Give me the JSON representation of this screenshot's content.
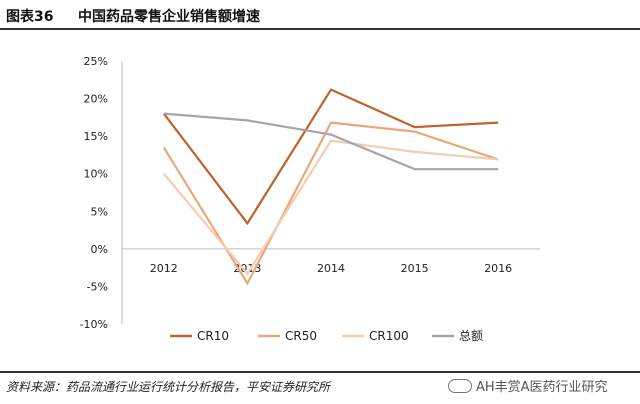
{
  "figure": {
    "number": "图表36",
    "title": "中国药品零售企业销售额增速",
    "source": "资料来源：药品流通行业运行统计分析报告，平安证券研究所",
    "watermark": "AH丰赏A医药行业研究"
  },
  "chart_data": {
    "type": "line",
    "title": "中国药品零售企业销售额增速",
    "xlabel": "",
    "ylabel": "",
    "categories": [
      "2012",
      "2013",
      "2014",
      "2015",
      "2016"
    ],
    "y_tick_labels": [
      "25%",
      "20%",
      "15%",
      "10%",
      "5%",
      "0%",
      "-5%",
      "-10%"
    ],
    "ylim": [
      -10,
      25
    ],
    "grid": false,
    "legend_position": "bottom",
    "series": [
      {
        "name": "CR10",
        "color": "#c0622d",
        "values": [
          18.0,
          3.4,
          21.2,
          16.2,
          16.8
        ]
      },
      {
        "name": "CR50",
        "color": "#e8a87b",
        "values": [
          13.5,
          -4.6,
          16.8,
          15.6,
          11.9
        ]
      },
      {
        "name": "CR100",
        "color": "#f4cdb0",
        "values": [
          10.0,
          -3.3,
          14.4,
          12.9,
          11.9
        ]
      },
      {
        "name": "总额",
        "color": "#a6a6a6",
        "values": [
          18.0,
          17.1,
          15.2,
          10.6,
          10.6
        ]
      }
    ]
  }
}
